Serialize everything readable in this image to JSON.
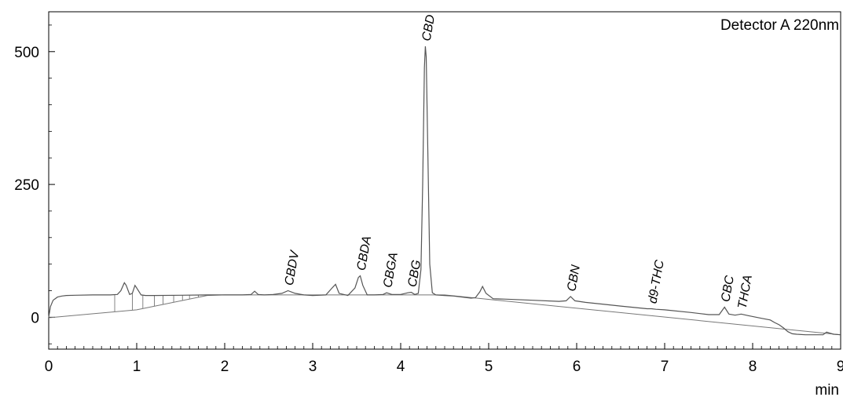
{
  "chart_data": {
    "type": "line",
    "detector_label": "Detector A 220nm",
    "xlabel": "min",
    "ylabel": "",
    "xlim": [
      0,
      9
    ],
    "ylim": [
      -60,
      575
    ],
    "x_ticks": [
      0,
      1,
      2,
      3,
      4,
      5,
      6,
      7,
      8,
      9
    ],
    "y_ticks": [
      0,
      250,
      500
    ],
    "grid": false,
    "line_color": "#555555",
    "peaks": [
      {
        "label": "CBDV",
        "rt": 2.72,
        "height": 50
      },
      {
        "label": "CBDA",
        "rt": 3.54,
        "height": 78
      },
      {
        "label": "CBGA",
        "rt": 3.84,
        "height": 46
      },
      {
        "label": "CBG",
        "rt": 4.12,
        "height": 47
      },
      {
        "label": "CBD",
        "rt": 4.28,
        "height": 510
      },
      {
        "label": "CBN",
        "rt": 5.93,
        "height": 39
      },
      {
        "label": "d9-THC",
        "rt": 6.85,
        "height": 16
      },
      {
        "label": "CBC",
        "rt": 7.68,
        "height": 19
      },
      {
        "label": "THCA",
        "rt": 7.87,
        "height": 6
      }
    ],
    "series": [
      {
        "x": [
          0.0,
          0.02,
          0.05,
          0.1,
          0.15,
          0.2,
          0.3,
          0.5,
          0.7,
          0.78,
          0.82,
          0.86,
          0.88,
          0.92,
          0.95,
          0.98,
          1.0,
          1.05,
          1.1,
          1.2,
          1.5,
          1.8,
          2.0,
          2.2,
          2.3,
          2.34,
          2.38,
          2.45,
          2.55,
          2.65,
          2.72,
          2.8,
          2.9,
          3.0,
          3.15,
          3.22,
          3.26,
          3.3,
          3.4,
          3.48,
          3.52,
          3.54,
          3.57,
          3.62,
          3.7,
          3.8,
          3.84,
          3.9,
          4.0,
          4.08,
          4.12,
          4.16,
          4.2,
          4.23,
          4.25,
          4.27,
          4.28,
          4.29,
          4.31,
          4.33,
          4.36,
          4.4,
          4.5,
          4.6,
          4.7,
          4.8,
          4.85,
          4.9,
          4.93,
          4.97,
          5.05,
          5.2,
          5.5,
          5.8,
          5.88,
          5.93,
          5.98,
          6.1,
          6.5,
          6.8,
          6.85,
          6.9,
          7.0,
          7.3,
          7.5,
          7.62,
          7.68,
          7.73,
          7.8,
          7.87,
          7.95,
          8.1,
          8.2,
          8.25,
          8.3,
          8.35,
          8.4,
          8.45,
          8.5,
          8.6,
          8.8,
          8.84,
          8.88,
          8.92,
          9.0
        ],
        "y": [
          0,
          20,
          32,
          38,
          40,
          41,
          41.5,
          42,
          42,
          43,
          50,
          65,
          60,
          43,
          45,
          60,
          55,
          42,
          41,
          41,
          41.5,
          42,
          42,
          42,
          43,
          49,
          43,
          42,
          43,
          45,
          50,
          45,
          42,
          41,
          42,
          55,
          62,
          45,
          41,
          55,
          75,
          78,
          60,
          42,
          42,
          43,
          46,
          43,
          43,
          46,
          47,
          43,
          45,
          90,
          250,
          470,
          510,
          490,
          300,
          100,
          46,
          42,
          41,
          40,
          38,
          36,
          37,
          48,
          58,
          45,
          35,
          34,
          32,
          30,
          31,
          39,
          31,
          28,
          21,
          16,
          16,
          15,
          14,
          9,
          5,
          5,
          19,
          6,
          4,
          6,
          3,
          -2,
          -5,
          -10,
          -14,
          -20,
          -27,
          -31,
          -32,
          -33,
          -33,
          -28,
          -30,
          -32,
          -33
        ]
      }
    ],
    "baseline": {
      "x": [
        0,
        1.0,
        1.8,
        2.0,
        4.5,
        9.0
      ],
      "y": [
        -1,
        14,
        41,
        42,
        42,
        -33
      ]
    }
  }
}
